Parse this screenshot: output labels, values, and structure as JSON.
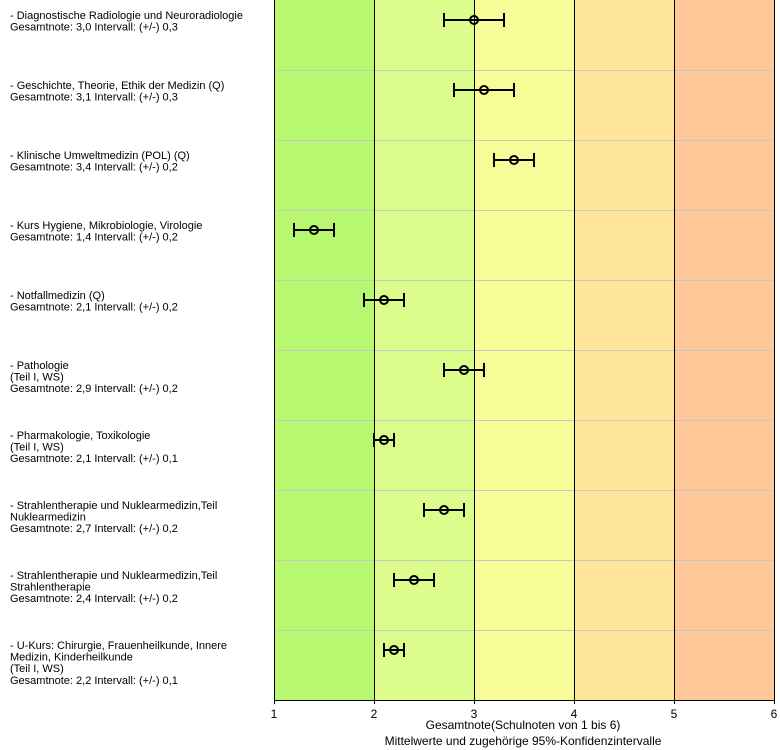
{
  "chart_data": {
    "type": "scatter",
    "xlabel": "Gesamtnote(Schulnoten von 1 bis 6)",
    "subtitle": "Mittelwerte und zugehörige 95%-Konfidenzintervalle",
    "xlim": [
      1,
      6
    ],
    "xticks": [
      "1",
      "2",
      "3",
      "4",
      "5",
      "6"
    ],
    "bands": [
      {
        "from": 1,
        "to": 2,
        "color": "#b8f870"
      },
      {
        "from": 2,
        "to": 3,
        "color": "#dcfc8c"
      },
      {
        "from": 3,
        "to": 4,
        "color": "#f8fc98"
      },
      {
        "from": 4,
        "to": 5,
        "color": "#ffe49c"
      },
      {
        "from": 5,
        "to": 6,
        "color": "#ffc898"
      }
    ],
    "items": [
      {
        "lines": [
          "- Diagnostische Radiologie und Neuroradiologie"
        ],
        "summary": "Gesamtnote: 3,0 Intervall: (+/-) 0,3",
        "mean": 3.0,
        "ci": 0.3
      },
      {
        "lines": [
          "- Geschichte, Theorie, Ethik der Medizin (Q)"
        ],
        "summary": "Gesamtnote: 3,1 Intervall: (+/-) 0,3",
        "mean": 3.1,
        "ci": 0.3
      },
      {
        "lines": [
          "- Klinische Umweltmedizin (POL) (Q)"
        ],
        "summary": "Gesamtnote: 3,4 Intervall: (+/-) 0,2",
        "mean": 3.4,
        "ci": 0.2
      },
      {
        "lines": [
          "- Kurs Hygiene, Mikrobiologie, Virologie"
        ],
        "summary": "Gesamtnote: 1,4 Intervall: (+/-) 0,2",
        "mean": 1.4,
        "ci": 0.2
      },
      {
        "lines": [
          "- Notfallmedizin (Q)"
        ],
        "summary": "Gesamtnote: 2,1 Intervall: (+/-) 0,2",
        "mean": 2.1,
        "ci": 0.2
      },
      {
        "lines": [
          "- Pathologie",
          "(Teil I, WS)"
        ],
        "summary": "Gesamtnote: 2,9 Intervall: (+/-) 0,2",
        "mean": 2.9,
        "ci": 0.2
      },
      {
        "lines": [
          "- Pharmakologie, Toxikologie",
          "(Teil I, WS)"
        ],
        "summary": "Gesamtnote: 2,1 Intervall: (+/-) 0,1",
        "mean": 2.1,
        "ci": 0.1
      },
      {
        "lines": [
          "- Strahlentherapie und Nuklearmedizin,Teil",
          "Nuklearmedizin"
        ],
        "summary": "Gesamtnote: 2,7 Intervall: (+/-) 0,2",
        "mean": 2.7,
        "ci": 0.2
      },
      {
        "lines": [
          "- Strahlentherapie und Nuklearmedizin,Teil",
          "Strahlentherapie"
        ],
        "summary": "Gesamtnote: 2,4 Intervall: (+/-) 0,2",
        "mean": 2.4,
        "ci": 0.2
      },
      {
        "lines": [
          "- U-Kurs: Chirurgie, Frauenheilkunde, Innere",
          "Medizin, Kinderheilkunde",
          "(Teil I, WS)"
        ],
        "summary": "Gesamtnote: 2,2 Intervall: (+/-) 0,1",
        "mean": 2.2,
        "ci": 0.1
      }
    ]
  }
}
